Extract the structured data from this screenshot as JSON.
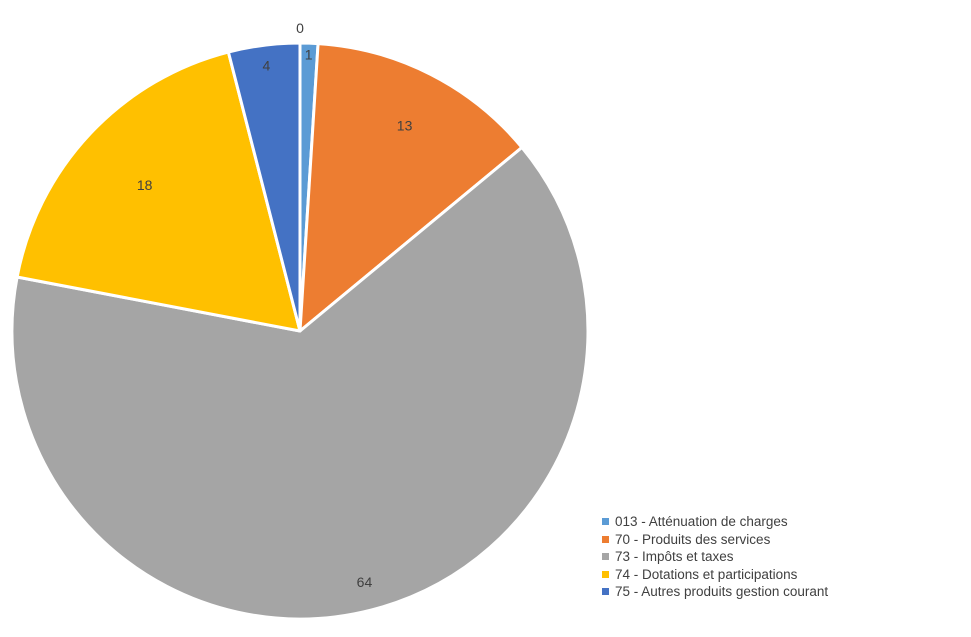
{
  "chart_data": {
    "type": "pie",
    "title": "",
    "categories": [
      "013 - Atténuation de charges",
      "70 - Produits des services",
      "73 - Impôts et taxes",
      "74 - Dotations et participations",
      "75 - Autres produits gestion courant"
    ],
    "values": [
      1,
      13,
      64,
      18,
      4
    ],
    "data_labels": [
      "1",
      "13",
      "64",
      "18",
      "4"
    ],
    "extra_labels": [
      "0"
    ],
    "colors": [
      "#5B9BD5",
      "#ED7D31",
      "#A5A5A5",
      "#FFC000",
      "#4472C4"
    ],
    "legend_position": "bottom-right"
  }
}
